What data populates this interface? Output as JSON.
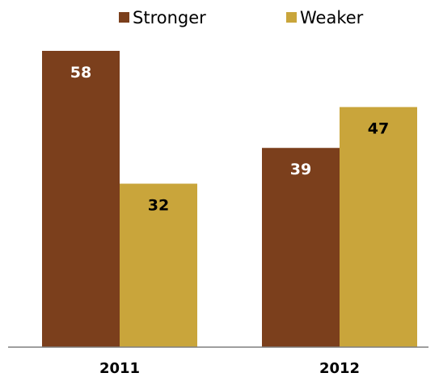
{
  "chart_data": {
    "type": "bar",
    "title": "",
    "xlabel": "",
    "ylabel": "",
    "categories": [
      "2011",
      "2012"
    ],
    "series": [
      {
        "name": "Stronger",
        "values": [
          58,
          39
        ],
        "color": "#7B3F1C",
        "label_color": "#ffffff"
      },
      {
        "name": "Weaker",
        "values": [
          32,
          47
        ],
        "color": "#C9A53B",
        "label_color": "#000000"
      }
    ],
    "ylim": [
      0,
      65
    ],
    "grid": false,
    "legend_position": "top"
  }
}
